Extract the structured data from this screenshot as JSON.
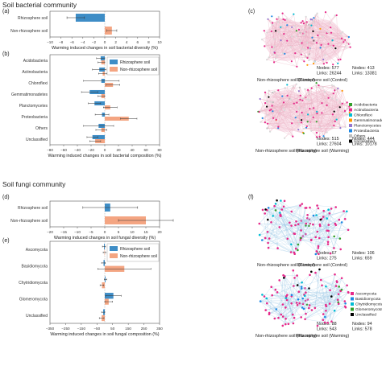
{
  "sections": {
    "bacteria": "Soil bacterial community",
    "fungi": "Soil fungi community"
  },
  "panel_labels": {
    "a": "(a)",
    "b": "(b)",
    "c": "(c)",
    "d": "(d)",
    "e": "(e)",
    "f": "(f)"
  },
  "colors": {
    "rhizosphere": "#3e8dc6",
    "non_rhizosphere": "#f4a582"
  },
  "chart_data": [
    {
      "id": "a",
      "type": "bar",
      "orientation": "horizontal",
      "categories": [
        "Rhizosphere soil",
        "Non-rhizosphere soil"
      ],
      "values": [
        -5.3,
        1.3
      ],
      "errors": [
        1.6,
        0.9
      ],
      "xlabel": "Warming induced changes in soil bacterial diversity (%)",
      "xlim": [
        -10,
        10
      ],
      "xticks": [
        "−10",
        "−8",
        "−6",
        "−4",
        "−2",
        "0",
        "2",
        "4",
        "6",
        "8",
        "10"
      ],
      "tickvals": [
        -10,
        -8,
        -6,
        -4,
        -2,
        0,
        2,
        4,
        6,
        8,
        10
      ]
    },
    {
      "id": "b",
      "type": "bar",
      "orientation": "horizontal",
      "categories": [
        "Acidobacteria",
        "Actinobacteria",
        "Chloroflexi",
        "Gemmatimonadetes",
        "Planctomycetes",
        "Proteobacteria",
        "Others",
        "Unclassified"
      ],
      "series": [
        {
          "name": "Rhizosphere soil",
          "values": [
            -6,
            -8,
            -5,
            -22,
            -15,
            -4,
            -9,
            -18
          ],
          "errors": [
            6,
            10,
            26,
            12,
            9,
            10,
            22,
            8
          ]
        },
        {
          "name": "Non-rhizosphere soil",
          "values": [
            -5,
            -3,
            12,
            -5,
            8,
            35,
            -5,
            -14
          ],
          "errors": [
            5,
            6,
            10,
            5,
            10,
            12,
            8,
            8
          ]
        }
      ],
      "xlabel": "Warming induced changes in soil bacterial composition (%)",
      "xlim": [
        -80,
        80
      ],
      "xticks": [
        "−80",
        "−60",
        "−40",
        "−20",
        "0",
        "20",
        "40",
        "60",
        "80"
      ],
      "tickvals": [
        -80,
        -60,
        -40,
        -20,
        0,
        20,
        40,
        60,
        80
      ],
      "legend": "top-right"
    },
    {
      "id": "d",
      "type": "bar",
      "orientation": "horizontal",
      "categories": [
        "Rhizosphere soil",
        "Non-rhizosphere soil"
      ],
      "values": [
        2,
        15
      ],
      "errors": [
        10,
        10
      ],
      "xlabel": "Warming induced changes in soil fungal diversity (%)",
      "xlim": [
        -20,
        20
      ],
      "xticks": [
        "−20",
        "−15",
        "−10",
        "−5",
        "0",
        "5",
        "10",
        "15",
        "20"
      ],
      "tickvals": [
        -20,
        -15,
        -10,
        -5,
        0,
        5,
        10,
        15,
        20
      ]
    },
    {
      "id": "e",
      "type": "bar",
      "orientation": "horizontal",
      "categories": [
        "Ascomycota",
        "Basidiomycota",
        "Chytridiomycota",
        "Glomeromycota",
        "Unclassified"
      ],
      "series": [
        {
          "name": "Rhizosphere soil",
          "values": [
            -5,
            -8,
            5,
            55,
            -10
          ],
          "errors": [
            10,
            12,
            8,
            50,
            10
          ]
        },
        {
          "name": "Non-rhizosphere soil",
          "values": [
            -2,
            125,
            -18,
            25,
            -20
          ],
          "errors": [
            8,
            170,
            12,
            25,
            15
          ]
        }
      ],
      "xlabel": "Warming induced changes in soil fungal composition (%)",
      "xlim": [
        -350,
        350
      ],
      "xticks": [
        "−350",
        "−250",
        "−150",
        "−50",
        "50",
        "150",
        "250",
        "350"
      ],
      "tickvals": [
        -350,
        -250,
        -150,
        -50,
        50,
        150,
        250,
        350
      ],
      "legend": "top-right"
    }
  ],
  "networks_c": [
    {
      "caption": "Non-rhizosphere soil (Control)",
      "nodes": "Nodes: 577",
      "links": "Links: 26244",
      "stats_side": "right"
    },
    {
      "caption": "Rhizosphere soil (Control)",
      "nodes": "Nodes: 413",
      "links": "Links: 13381",
      "stats_side": "left"
    },
    {
      "caption": "Non-rhizosphere soil (Warming)",
      "nodes": "Nodes: 515",
      "links": "Links: 27604",
      "stats_side": "right"
    },
    {
      "caption": "Rhizosphere soil (Warming)",
      "nodes": "Nodes: 444",
      "links": "Links: 10178",
      "stats_side": "left"
    }
  ],
  "networks_f": [
    {
      "caption": "Non-rhizosphere soil (Control)",
      "nodes": "Nodes: 67",
      "links": "Links: 275",
      "stats_side": "right"
    },
    {
      "caption": "Rhizosphere soil (Control)",
      "nodes": "Nodes: 106",
      "links": "Links: 659",
      "stats_side": "left"
    },
    {
      "caption": "Non-rhizosphere soil (Warming)",
      "nodes": "Nodes: 88",
      "links": "Links: 543",
      "stats_side": "right"
    },
    {
      "caption": "Rhizosphere soil (Warming)",
      "nodes": "Nodes: 94",
      "links": "Links: 578",
      "stats_side": "left"
    }
  ],
  "legend_c": [
    {
      "label": "Acidobacteria",
      "color": "#33a02c"
    },
    {
      "label": "Actinobacteria",
      "color": "#e7298a"
    },
    {
      "label": "Chloroflexi",
      "color": "#00bcd4"
    },
    {
      "label": "Gemmatimonadetes",
      "color": "#ff9800"
    },
    {
      "label": "Planctomycetes",
      "color": "#9575cd"
    },
    {
      "label": "Proteobacteria",
      "color": "#1e88e5"
    },
    {
      "label": "Others",
      "color": "#bdbdbd"
    },
    {
      "label": "Unclassified",
      "color": "#000000"
    }
  ],
  "legend_f": [
    {
      "label": "Ascomycota",
      "color": "#e7298a"
    },
    {
      "label": "Basidiomycota",
      "color": "#1e88e5"
    },
    {
      "label": "Chytridiomycota",
      "color": "#00bcd4"
    },
    {
      "label": "Glomeromycota",
      "color": "#33a02c"
    },
    {
      "label": "Unclassified",
      "color": "#000000"
    }
  ]
}
